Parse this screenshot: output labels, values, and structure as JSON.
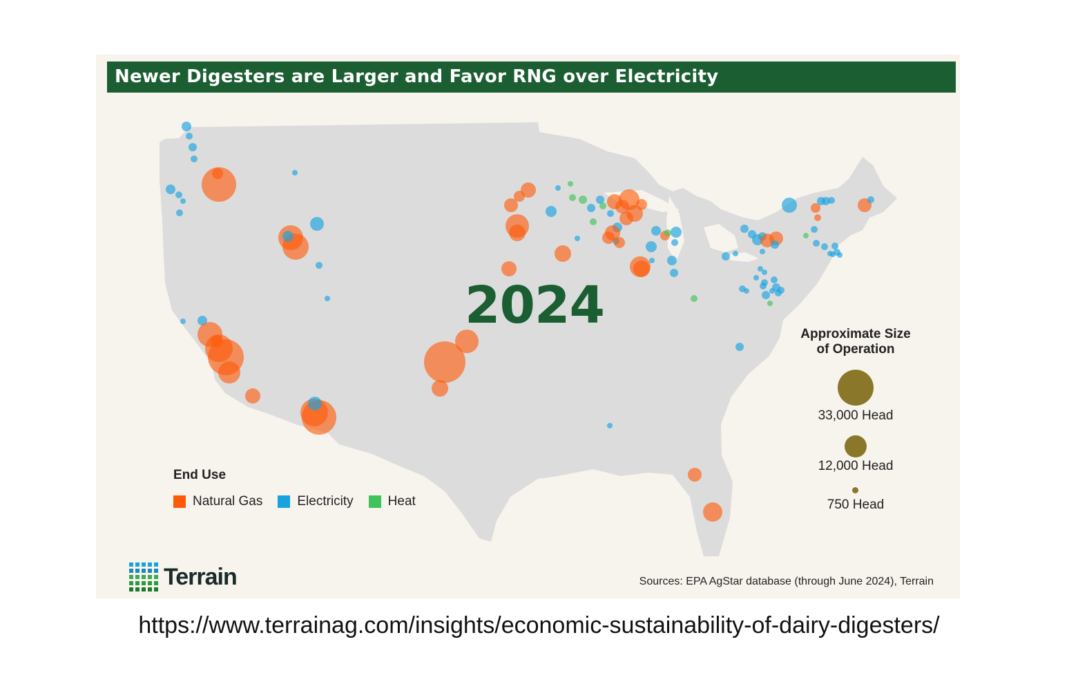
{
  "title": "Newer Digesters are Larger and Favor RNG over Electricity",
  "year_label": "2024",
  "legend": {
    "title": "End Use",
    "items": [
      {
        "label": "Natural Gas",
        "color": "#ff5a0a"
      },
      {
        "label": "Electricity",
        "color": "#18a3e0"
      },
      {
        "label": "Heat",
        "color": "#3fc35a"
      }
    ]
  },
  "size_legend": {
    "title_line1": "Approximate Size",
    "title_line2": "of Operation",
    "items": [
      {
        "label": "33,000 Head",
        "head": 33000
      },
      {
        "label": "12,000 Head",
        "head": 12000
      },
      {
        "label": "750 Head",
        "head": 750
      }
    ],
    "color": "#8a7729"
  },
  "brand": "Terrain",
  "sources": "Sources: EPA AgStar database (through June 2024), Terrain",
  "url": "https://www.terrainag.com/insights/economic-sustainability-of-dairy-digesters/",
  "colors": {
    "title_bar": "#1a5e32",
    "map_land": "#dcdcdc",
    "card_background": "#f7f3ed"
  }
}
